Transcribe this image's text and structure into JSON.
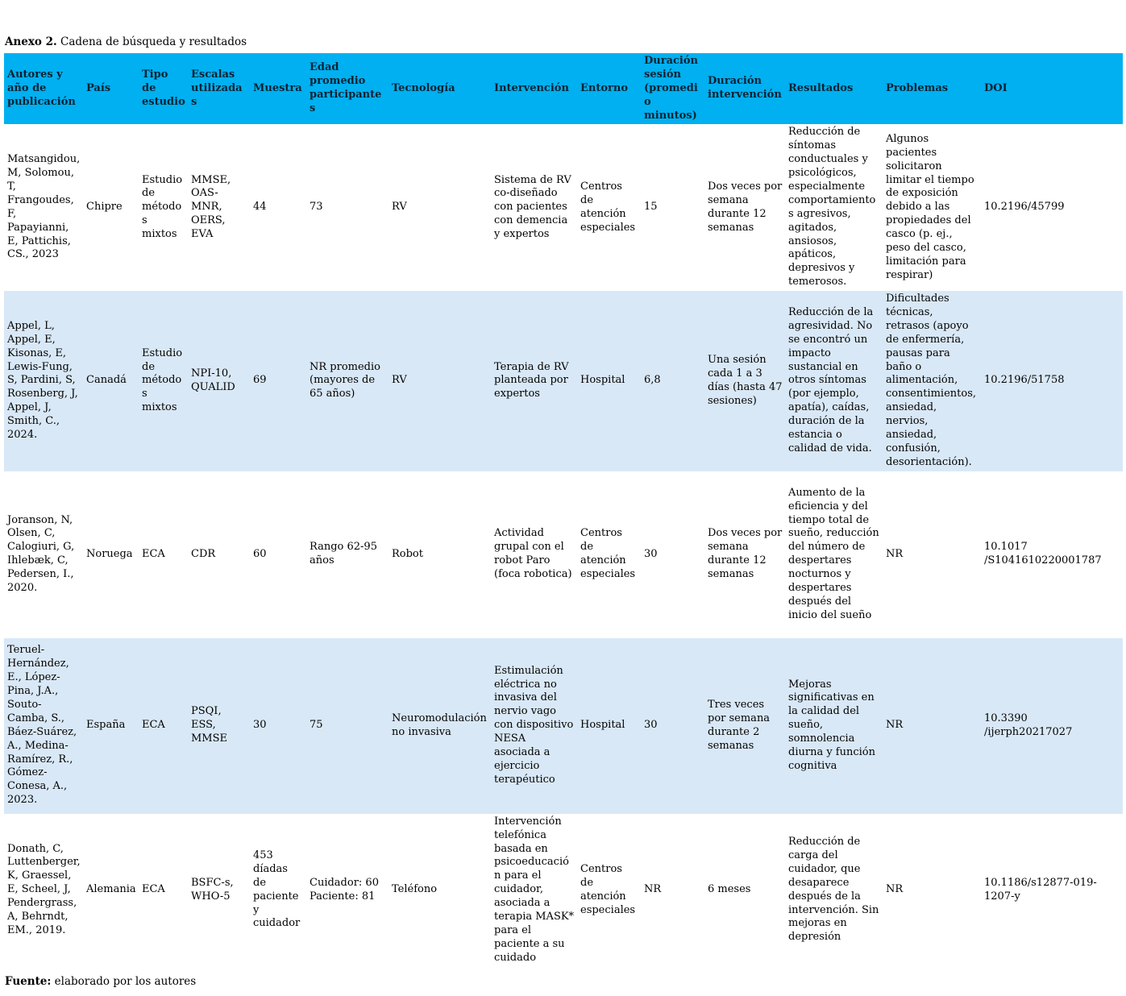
{
  "title": {
    "bold": "Anexo 2.",
    "rest": " Cadena de búsqueda y resultados"
  },
  "footer": {
    "bold": "Fuente:",
    "rest": " elaborado por los autores"
  },
  "colors": {
    "header_bg": "#00b0f0",
    "header_text": "#0a2233",
    "row_bg": "#ffffff",
    "row_alt_bg": "#d9e8f6"
  },
  "table": {
    "headers": [
      "Autores y año de publicación",
      "País",
      "Tipo de estudio",
      "Escalas utilizadas",
      "Muestra",
      "Edad promedio participantes",
      "Tecnología",
      "Intervención",
      "Entorno",
      "Duración sesión (promedio minutos)",
      "Duración intervención",
      "Resultados",
      "Problemas",
      "DOI"
    ],
    "rows": [
      [
        "Matsangidou, M, Solomou, T, Frangoudes, F, Papayianni, E, Pattichis, CS., 2023",
        "Chipre",
        "Estudio de métodos mixtos",
        "MMSE, OAS-MNR, OERS, EVA",
        "44",
        "73",
        "RV",
        "Sistema de RV co-diseñado con pacientes con demencia y expertos",
        "Centros de atención especiales",
        "15",
        "Dos veces por semana durante 12 semanas",
        "Reducción de síntomas conductuales y psicológicos, especialmente comportamientos agresivos, agitados, ansiosos, apáticos, depresivos y temerosos.",
        "Algunos pacientes solicitaron limitar el tiempo de exposición debido a las propiedades del casco (p. ej., peso del casco, limitación para respirar)",
        "10.2196/45799"
      ],
      [
        "Appel, L, Appel, E, Kisonas, E, Lewis-Fung, S, Pardini, S, Rosenberg, J, Appel, J, Smith, C., 2024.",
        "Canadá",
        "Estudio de métodos mixtos",
        "NPI-10, QUALID",
        "69",
        "NR promedio (mayores de 65 años)",
        "RV",
        "Terapia de RV planteada por expertos",
        "Hospital",
        "6,8",
        "Una sesión cada 1 a 3 días (hasta 47 sesiones)",
        "Reducción de la agresividad. No se encontró un impacto sustancial en otros síntomas (por ejemplo, apatía), caídas, duración de la estancia o calidad de vida.",
        "Dificultades técnicas, retrasos (apoyo de enfermería, pausas para baño o alimentación, consentimientos, ansiedad, nervios, ansiedad, confusión, desorientación).",
        "10.2196/51758"
      ],
      [
        "Joranson, N, Olsen, C, Calogiuri, G, Ihlebæk, C, Pedersen, I., 2020.",
        "Noruega",
        "ECA",
        "CDR",
        "60",
        "Rango 62-95 años",
        "Robot",
        "Actividad grupal con el robot Paro (foca robotica)",
        "Centros de atención especiales",
        "30",
        "Dos veces por semana durante 12 semanas",
        "Aumento de la eficiencia y del tiempo total de sueño, reducción del número de despertares nocturnos y despertares después del inicio del sueño",
        "NR",
        "10.1017\n/S1041610220001787"
      ],
      [
        "Teruel-Hernández, E., López-Pina, J.A., Souto-Camba, S., Báez-Suárez, A., Medina-Ramírez, R., Gómez-Conesa, A., 2023.",
        "España",
        "ECA",
        "PSQI, ESS, MMSE",
        "30",
        "75",
        "Neuromodulación no invasiva",
        "Estimulación eléctrica no invasiva del nervio vago con dispositivo NESA asociada a ejercicio terapéutico",
        "Hospital",
        "30",
        "Tres veces por semana durante 2 semanas",
        "Mejoras significativas en la calidad del sueño, somnolencia diurna y función cognitiva",
        "NR",
        "10.3390\n/ijerph20217027"
      ],
      [
        "Donath, C, Luttenberger, K, Graessel, E, Scheel, J, Pendergrass, A, Behrndt, EM., 2019.",
        "Alemania",
        "ECA",
        "BSFC-s, WHO-5",
        "453 díadas de paciente y cuidador",
        "Cuidador: 60\nPaciente: 81",
        "Teléfono",
        "Intervención telefónica basada en psicoeducación para el cuidador, asociada a terapia MASK* para el paciente a su cuidado",
        "Centros de atención especiales",
        "NR",
        "6 meses",
        "Reducción de carga del cuidador, que desaparece después de la intervención. Sin mejoras en depresión",
        "NR",
        "10.1186/s12877-019-1207-y"
      ]
    ]
  }
}
